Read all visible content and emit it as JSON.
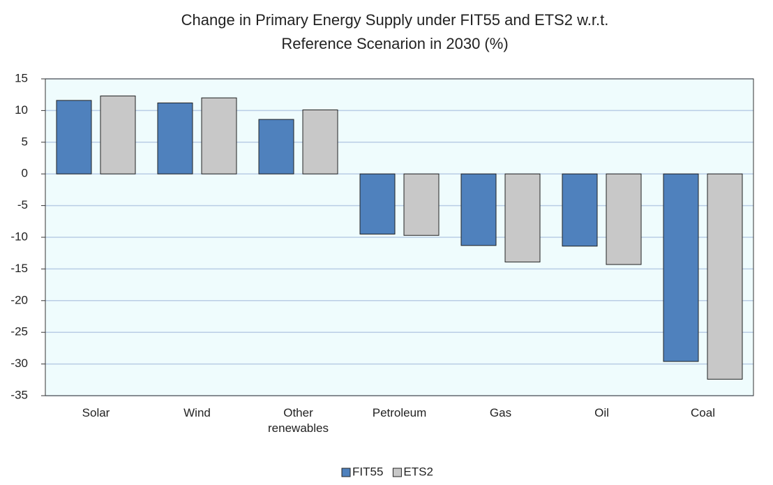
{
  "chart_data": {
    "type": "bar",
    "title": [
      "Change in Primary Energy Supply under FIT55 and ETS2 w.r.t.",
      "Reference Scenarion in 2030 (%)"
    ],
    "categories": [
      "Solar",
      "Wind",
      "Other renewables",
      "Petroleum",
      "Gas",
      "Oil",
      "Coal"
    ],
    "series": [
      {
        "name": "FIT55",
        "color": "#4f81bd",
        "values": [
          11.6,
          11.2,
          8.6,
          -9.5,
          -11.3,
          -11.4,
          -29.6
        ]
      },
      {
        "name": "ETS2",
        "color": "#c8c8c8",
        "values": [
          12.3,
          12.0,
          10.1,
          -9.7,
          -13.9,
          -14.3,
          -32.4
        ]
      }
    ],
    "ylim": [
      -35,
      15
    ],
    "yticks": [
      -35,
      -30,
      -25,
      -20,
      -15,
      -10,
      -5,
      0,
      5,
      10,
      15
    ],
    "grid": true,
    "legend": "bottom"
  }
}
